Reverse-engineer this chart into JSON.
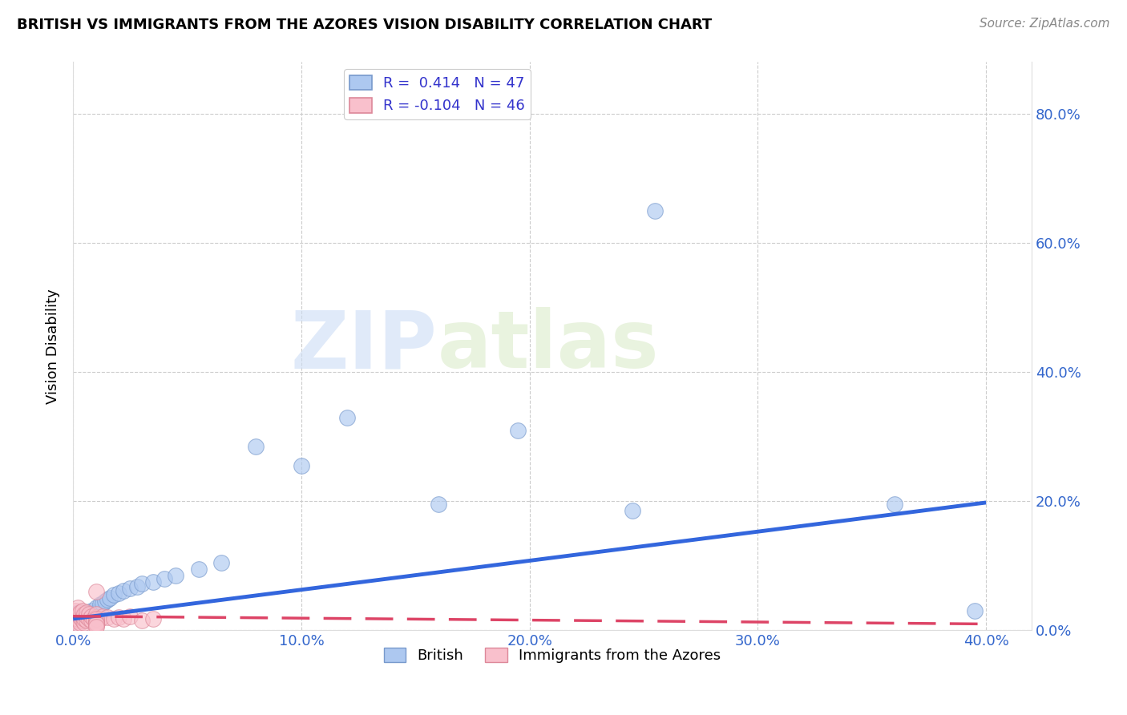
{
  "title": "BRITISH VS IMMIGRANTS FROM THE AZORES VISION DISABILITY CORRELATION CHART",
  "source": "Source: ZipAtlas.com",
  "ylabel": "Vision Disability",
  "xlim": [
    0.0,
    0.42
  ],
  "ylim": [
    0.0,
    0.88
  ],
  "xticks": [
    0.0,
    0.1,
    0.2,
    0.3,
    0.4
  ],
  "yticks": [
    0.0,
    0.2,
    0.4,
    0.6,
    0.8
  ],
  "xtick_labels": [
    "0.0%",
    "10.0%",
    "20.0%",
    "30.0%",
    "40.0%"
  ],
  "ytick_labels": [
    "0.0%",
    "20.0%",
    "40.0%",
    "60.0%",
    "80.0%"
  ],
  "british_color": "#adc8f0",
  "azores_color": "#f9c0cc",
  "british_edge_color": "#7799cc",
  "azores_edge_color": "#dd8899",
  "british_line_color": "#3366dd",
  "azores_line_color": "#dd4466",
  "british_R": 0.414,
  "british_N": 47,
  "azores_R": -0.104,
  "azores_N": 46,
  "watermark_zip": "ZIP",
  "watermark_atlas": "atlas",
  "british_line_x0": 0.0,
  "british_line_y0": 0.018,
  "british_line_x1": 0.4,
  "british_line_y1": 0.198,
  "azores_line_x0": 0.0,
  "azores_line_y0": 0.022,
  "azores_line_x1": 0.4,
  "azores_line_y1": 0.01,
  "british_x": [
    0.001,
    0.001,
    0.001,
    0.002,
    0.002,
    0.002,
    0.003,
    0.003,
    0.004,
    0.004,
    0.005,
    0.005,
    0.005,
    0.006,
    0.006,
    0.007,
    0.007,
    0.008,
    0.008,
    0.009,
    0.01,
    0.01,
    0.012,
    0.013,
    0.014,
    0.015,
    0.016,
    0.018,
    0.02,
    0.022,
    0.025,
    0.028,
    0.03,
    0.035,
    0.04,
    0.045,
    0.055,
    0.065,
    0.08,
    0.1,
    0.12,
    0.16,
    0.195,
    0.245,
    0.255,
    0.36,
    0.395
  ],
  "british_y": [
    0.01,
    0.018,
    0.025,
    0.012,
    0.022,
    0.028,
    0.015,
    0.02,
    0.018,
    0.025,
    0.015,
    0.022,
    0.028,
    0.018,
    0.025,
    0.02,
    0.028,
    0.022,
    0.03,
    0.025,
    0.028,
    0.035,
    0.04,
    0.042,
    0.045,
    0.048,
    0.05,
    0.055,
    0.058,
    0.062,
    0.065,
    0.068,
    0.072,
    0.075,
    0.08,
    0.085,
    0.095,
    0.105,
    0.285,
    0.255,
    0.33,
    0.195,
    0.31,
    0.185,
    0.65,
    0.195,
    0.03
  ],
  "azores_x": [
    0.001,
    0.001,
    0.001,
    0.001,
    0.002,
    0.002,
    0.002,
    0.002,
    0.003,
    0.003,
    0.003,
    0.004,
    0.004,
    0.004,
    0.005,
    0.005,
    0.005,
    0.006,
    0.006,
    0.006,
    0.007,
    0.007,
    0.008,
    0.008,
    0.009,
    0.01,
    0.01,
    0.012,
    0.013,
    0.015,
    0.018,
    0.02,
    0.022,
    0.025,
    0.03,
    0.035,
    0.01,
    0.01,
    0.01,
    0.01,
    0.01,
    0.01,
    0.01,
    0.01,
    0.01,
    0.01
  ],
  "azores_y": [
    0.008,
    0.015,
    0.022,
    0.03,
    0.01,
    0.018,
    0.025,
    0.035,
    0.012,
    0.02,
    0.028,
    0.015,
    0.022,
    0.03,
    0.012,
    0.018,
    0.025,
    0.015,
    0.022,
    0.028,
    0.018,
    0.025,
    0.015,
    0.022,
    0.018,
    0.02,
    0.025,
    0.018,
    0.022,
    0.02,
    0.018,
    0.02,
    0.018,
    0.022,
    0.015,
    0.018,
    0.06,
    0.008,
    0.012,
    0.01,
    0.015,
    0.008,
    0.018,
    0.012,
    0.01,
    0.005
  ]
}
